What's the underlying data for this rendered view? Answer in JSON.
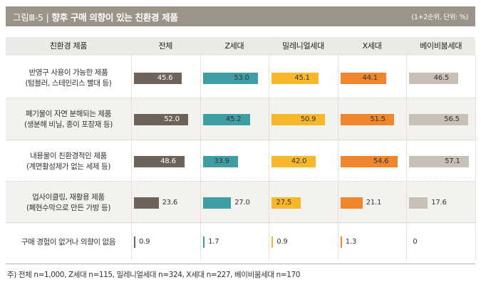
{
  "title": {
    "label": "그림Ⅲ-5",
    "separator": "|",
    "text": "향후 구매 의향이 있는 친환경 제품",
    "note": "(1+2순위, 단위: %)"
  },
  "colors": {
    "titlebar": "#9c9389",
    "header": "#eceae7",
    "band": "#f4f2ef",
    "series": [
      "#6e635a",
      "#3f9ea4",
      "#f7b72a",
      "#ef862d",
      "#c8bfb5"
    ]
  },
  "chart_data": {
    "type": "bar",
    "title": "향후 구매 의향이 있는 친환경 제품",
    "unit": "%",
    "category_header": "친환경 제품",
    "categories": [
      {
        "line1": "반영구 사용이 가능한 제품",
        "line2": "(텀블러, 스테인리스 빨대 등)"
      },
      {
        "line1": "폐기물이 자연 분해되는 제품",
        "line2": "(생분해 비닐, 종이 포장재 등)"
      },
      {
        "line1": "내용물이 친환경적인 제품",
        "line2": "(계면활성제가 없는 세제 등)"
      },
      {
        "line1": "업사이클링, 재활용 제품",
        "line2": "(폐현수막으로 만든 가방 등)"
      },
      {
        "line1": "구매 경험이 없거나  의향이 없음",
        "line2": ""
      }
    ],
    "series": [
      {
        "name": "전체",
        "values": [
          45.6,
          52.0,
          48.6,
          23.6,
          0.9
        ]
      },
      {
        "name": "Z세대",
        "values": [
          53.0,
          45.2,
          33.9,
          27.0,
          1.7
        ]
      },
      {
        "name": "밀레니얼세대",
        "values": [
          45.1,
          50.9,
          42.0,
          27.5,
          0.9
        ]
      },
      {
        "name": "X세대",
        "values": [
          44.1,
          51.5,
          54.6,
          21.1,
          1.3
        ]
      },
      {
        "name": "베이비붐세대",
        "values": [
          46.5,
          56.5,
          57.1,
          17.6,
          0
        ]
      }
    ],
    "value_labels": [
      [
        "45.6",
        "52.0",
        "48.6",
        "23.6",
        "0.9"
      ],
      [
        "53.0",
        "45.2",
        "33.9",
        "27.0",
        "1.7"
      ],
      [
        "45.1",
        "50.9",
        "42.0",
        "27.5",
        "0.9"
      ],
      [
        "44.1",
        "51.5",
        "54.6",
        "21.1",
        "1.3"
      ],
      [
        "46.5",
        "56.5",
        "57.1",
        "17.6",
        "0"
      ]
    ],
    "ylim": [
      0,
      100
    ]
  },
  "footnote": "주) 전체 n=1,000, Z세대 n=115, 밀레니얼세대 n=324, X세대 n=227, 베이비붐세대 n=170"
}
